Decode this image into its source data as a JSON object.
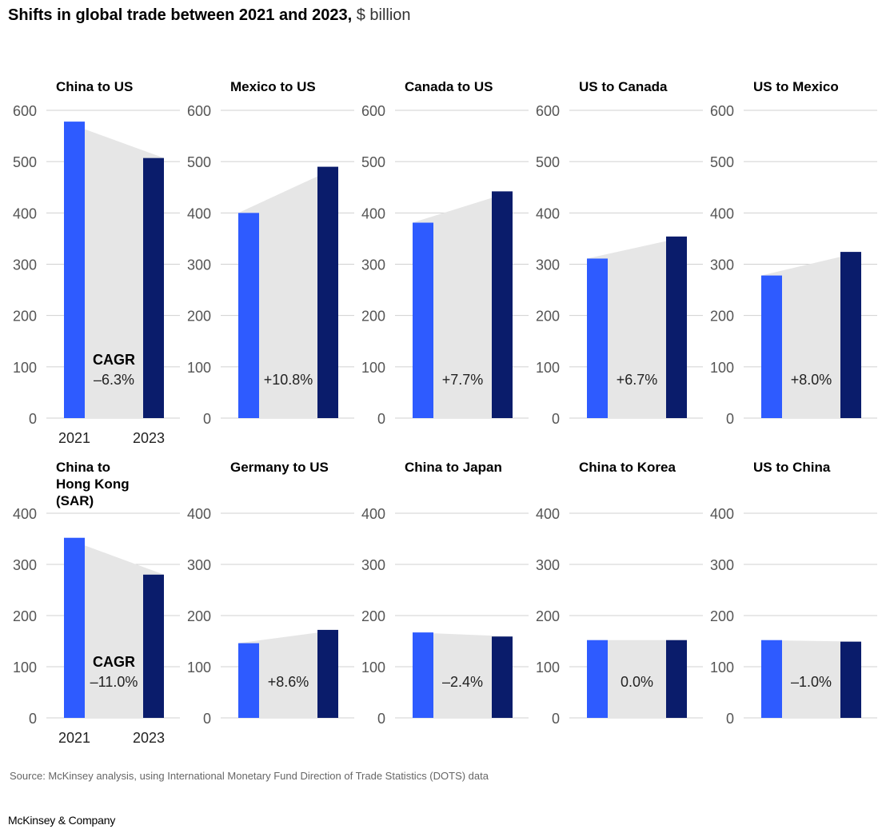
{
  "title": {
    "main": "Shifts in global trade between 2021 and 2023,",
    "unit": "$ billion"
  },
  "colors": {
    "bar_2021": "#2e5bff",
    "bar_2023": "#0a1c6b",
    "area": "#e6e6e6",
    "grid": "#d0d0d0",
    "axis_text": "#555555"
  },
  "chart_data": [
    {
      "type": "bar",
      "title": "China to US",
      "categories": [
        "2021",
        "2023"
      ],
      "values": [
        578,
        507
      ],
      "ylim": [
        0,
        600
      ],
      "yticks": [
        0,
        100,
        200,
        300,
        400,
        500,
        600
      ],
      "cagr_label": "CAGR",
      "cagr": "–6.3%",
      "show_categories": true
    },
    {
      "type": "bar",
      "title": "Mexico to US",
      "categories": [
        "2021",
        "2023"
      ],
      "values": [
        400,
        490
      ],
      "ylim": [
        0,
        600
      ],
      "yticks": [
        0,
        100,
        200,
        300,
        400,
        500,
        600
      ],
      "cagr": "+10.8%",
      "show_categories": false
    },
    {
      "type": "bar",
      "title": "Canada to US",
      "categories": [
        "2021",
        "2023"
      ],
      "values": [
        381,
        442
      ],
      "ylim": [
        0,
        600
      ],
      "yticks": [
        0,
        100,
        200,
        300,
        400,
        500,
        600
      ],
      "cagr": "+7.7%",
      "show_categories": false
    },
    {
      "type": "bar",
      "title": "US to Canada",
      "categories": [
        "2021",
        "2023"
      ],
      "values": [
        311,
        354
      ],
      "ylim": [
        0,
        600
      ],
      "yticks": [
        0,
        100,
        200,
        300,
        400,
        500,
        600
      ],
      "cagr": "+6.7%",
      "show_categories": false
    },
    {
      "type": "bar",
      "title": "US to Mexico",
      "categories": [
        "2021",
        "2023"
      ],
      "values": [
        278,
        324
      ],
      "ylim": [
        0,
        600
      ],
      "yticks": [
        0,
        100,
        200,
        300,
        400,
        500,
        600
      ],
      "cagr": "+8.0%",
      "show_categories": false
    },
    {
      "type": "bar",
      "title": "China to Hong Kong (SAR)",
      "categories": [
        "2021",
        "2023"
      ],
      "values": [
        352,
        280
      ],
      "ylim": [
        0,
        400
      ],
      "yticks": [
        0,
        100,
        200,
        300,
        400
      ],
      "cagr_label": "CAGR",
      "cagr": "–11.0%",
      "show_categories": true
    },
    {
      "type": "bar",
      "title": "Germany to US",
      "categories": [
        "2021",
        "2023"
      ],
      "values": [
        146,
        172
      ],
      "ylim": [
        0,
        400
      ],
      "yticks": [
        0,
        100,
        200,
        300,
        400
      ],
      "cagr": "+8.6%",
      "show_categories": false
    },
    {
      "type": "bar",
      "title": "China to Japan",
      "categories": [
        "2021",
        "2023"
      ],
      "values": [
        167,
        159
      ],
      "ylim": [
        0,
        400
      ],
      "yticks": [
        0,
        100,
        200,
        300,
        400
      ],
      "cagr": "–2.4%",
      "show_categories": false
    },
    {
      "type": "bar",
      "title": "China to Korea",
      "categories": [
        "2021",
        "2023"
      ],
      "values": [
        152,
        152
      ],
      "ylim": [
        0,
        400
      ],
      "yticks": [
        0,
        100,
        200,
        300,
        400
      ],
      "cagr": "0.0%",
      "show_categories": false
    },
    {
      "type": "bar",
      "title": "US to China",
      "categories": [
        "2021",
        "2023"
      ],
      "values": [
        152,
        149
      ],
      "ylim": [
        0,
        400
      ],
      "yticks": [
        0,
        100,
        200,
        300,
        400
      ],
      "cagr": "–1.0%",
      "show_categories": false
    }
  ],
  "source": "Source: McKinsey analysis, using International Monetary Fund Direction of Trade Statistics (DOTS) data",
  "brand": "McKinsey & Company"
}
